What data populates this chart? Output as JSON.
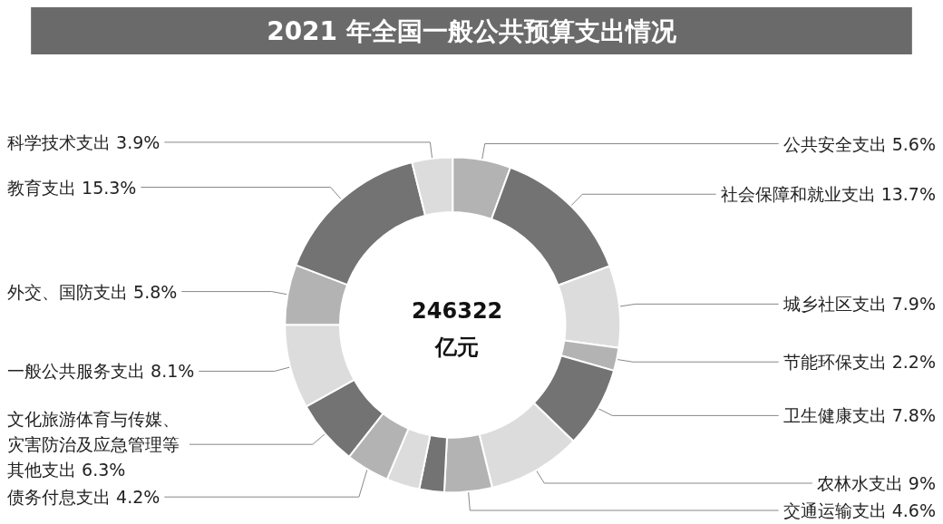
{
  "chart_data": {
    "type": "donut",
    "title": "2021 年全国一般公共预算支出情况",
    "categories": [
      "公共安全支出",
      "社会保障和就业支出",
      "城乡社区支出",
      "节能环保支出",
      "卫生健康支出",
      "农林水支出",
      "交通运输支出",
      null,
      null,
      "债务付息支出",
      "文化旅游体育与传媒、灾害防治及应急管理等其他支出",
      "一般公共服务支出",
      "外交、国防支出",
      "教育支出",
      "科学技术支出"
    ],
    "values": [
      5.6,
      13.7,
      7.9,
      2.2,
      7.8,
      9,
      4.6,
      2.4,
      3.2,
      4.2,
      6.3,
      8.1,
      5.8,
      15.3,
      3.9
    ],
    "value_labels": [
      "5.6%",
      "13.7%",
      "7.9%",
      "2.2%",
      "7.8%",
      "9%",
      "4.6%",
      null,
      null,
      "4.2%",
      "6.3%",
      "8.1%",
      "5.8%",
      "15.3%",
      "3.9%"
    ],
    "colors": [
      "#b3b3b3",
      "#737373",
      "#dcdcdc",
      "#b3b3b3",
      "#737373",
      "#dcdcdc",
      "#b3b3b3",
      "#737373",
      "#dcdcdc",
      "#b3b3b3",
      "#737373",
      "#dcdcdc",
      "#b3b3b3",
      "#737373",
      "#dcdcdc"
    ],
    "annotations": [
      "246322\n亿元"
    ]
  }
}
